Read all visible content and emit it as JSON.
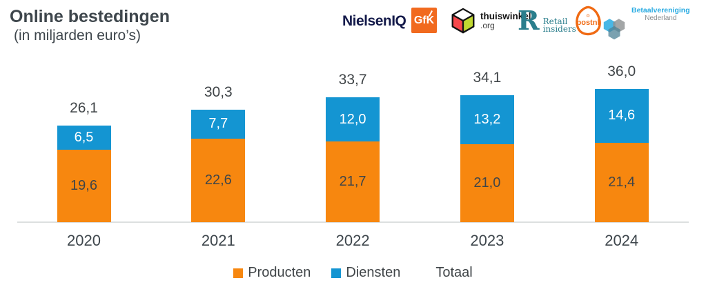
{
  "header": {
    "title": "Online bestedingen",
    "subtitle": "(in miljarden euro’s)",
    "logos": [
      {
        "id": "nielseniq",
        "label": "NielsenIQ"
      },
      {
        "id": "gfk",
        "label": "GfK"
      },
      {
        "id": "thuiswinkel",
        "line1": "thuiswinkel",
        "line2": ".org"
      },
      {
        "id": "retail-insiders",
        "mark": "R",
        "line1": "Retail",
        "line2": "insiders"
      },
      {
        "id": "postnl",
        "label": "postnl",
        "crown": "♔"
      },
      {
        "id": "betaalvereniging",
        "line1": "Betaalvereniging",
        "line2": "Nederland"
      }
    ]
  },
  "chart_data": {
    "type": "bar",
    "stacked": true,
    "title": "Online bestedingen",
    "subtitle": "(in miljarden euro’s)",
    "categories": [
      "2020",
      "2021",
      "2022",
      "2023",
      "2024"
    ],
    "series": [
      {
        "name": "Producten",
        "color": "#F7870F",
        "values": [
          19.6,
          22.6,
          21.7,
          21.0,
          21.4
        ],
        "labels": [
          "19,6",
          "22,6",
          "21,7",
          "21,0",
          "21,4"
        ]
      },
      {
        "name": "Diensten",
        "color": "#1495D2",
        "values": [
          6.5,
          7.7,
          12.0,
          13.2,
          14.6
        ],
        "labels": [
          "6,5",
          "7,7",
          "12,0",
          "13,2",
          "14,6"
        ]
      }
    ],
    "totals": {
      "name": "Totaal",
      "values": [
        26.1,
        30.3,
        33.7,
        34.1,
        36.0
      ],
      "labels": [
        "26,1",
        "30,3",
        "33,7",
        "34,1",
        "36,0"
      ]
    },
    "ylim": [
      0,
      36
    ],
    "grid": false,
    "legend_position": "bottom"
  },
  "legend": {
    "items": [
      {
        "label": "Producten",
        "color": "#F7870F"
      },
      {
        "label": "Diensten",
        "color": "#1495D2"
      },
      {
        "label": "Totaal",
        "color": null
      }
    ]
  },
  "colors": {
    "producten_orange": "#F7870F",
    "diensten_blue": "#1495D2",
    "text_dark": "#3E464C",
    "axis_line": "#DCDFDF",
    "nielsen_navy": "#141A4A",
    "gfk_orange": "#F16A1F",
    "thuiswinkel_red": "#F8484C",
    "thuiswinkel_green": "#C1D831",
    "retail_teal": "#2A7E8C",
    "postnl_orange": "#F06A13",
    "betaal_blue": "#29ABE2",
    "betaal_gray": "#8F9294"
  }
}
